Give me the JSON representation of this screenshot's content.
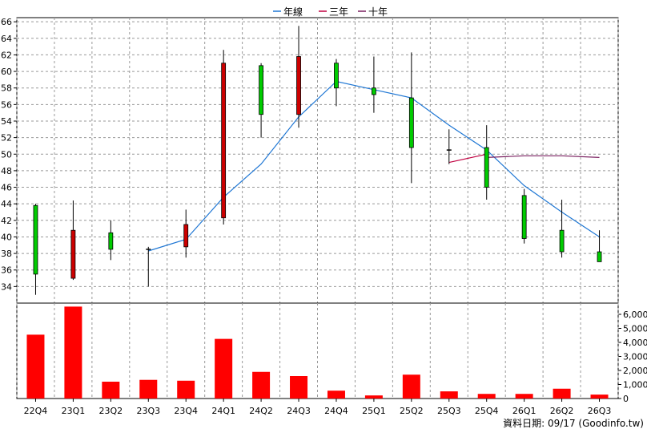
{
  "legend": [
    {
      "name": "年線",
      "color": "#1f77d4"
    },
    {
      "name": "三年",
      "color": "#c00040"
    },
    {
      "name": "十年",
      "color": "#7a2060"
    }
  ],
  "footer": "資料日期: 09/17 (Goodinfo.tw)",
  "chart_data": [
    {
      "type": "candlestick",
      "legend_placement": "top-center",
      "grid": true,
      "ylim": [
        32,
        66.5
      ],
      "yticks": [
        34,
        36,
        38,
        40,
        42,
        44,
        46,
        48,
        50,
        52,
        54,
        56,
        58,
        60,
        62,
        64,
        66
      ],
      "categories": [
        "22Q4",
        "23Q1",
        "23Q2",
        "23Q3",
        "23Q4",
        "24Q1",
        "24Q2",
        "24Q3",
        "24Q4",
        "25Q1",
        "25Q2",
        "25Q3",
        "25Q4",
        "26Q1",
        "26Q2",
        "26Q3"
      ],
      "candles": [
        {
          "open": 35.5,
          "close": 43.8,
          "high": 44.0,
          "low": 33.0,
          "color": "#00cc00"
        },
        {
          "open": 40.8,
          "close": 35.0,
          "high": 44.4,
          "low": 34.8,
          "color": "#cc0000"
        },
        {
          "open": 38.5,
          "close": 40.5,
          "high": 42.0,
          "low": 37.2,
          "color": "#00cc00"
        },
        {
          "open": 38.5,
          "close": 38.5,
          "high": 38.8,
          "low": 34.0,
          "color": "#000000"
        },
        {
          "open": 41.5,
          "close": 38.8,
          "high": 43.3,
          "low": 37.5,
          "color": "#cc0000"
        },
        {
          "open": 61.0,
          "close": 42.3,
          "high": 62.6,
          "low": 41.5,
          "color": "#cc0000"
        },
        {
          "open": 54.8,
          "close": 60.7,
          "high": 61.0,
          "low": 52.0,
          "color": "#00cc00"
        },
        {
          "open": 61.8,
          "close": 54.8,
          "high": 65.5,
          "low": 53.2,
          "color": "#cc0000"
        },
        {
          "open": 58.0,
          "close": 61.0,
          "high": 61.5,
          "low": 55.8,
          "color": "#00cc00"
        },
        {
          "open": 57.2,
          "close": 58.0,
          "high": 61.8,
          "low": 55.0,
          "color": "#00cc00"
        },
        {
          "open": 50.8,
          "close": 56.8,
          "high": 62.3,
          "low": 46.5,
          "color": "#00cc00"
        },
        {
          "open": 50.5,
          "close": 50.5,
          "high": 53.0,
          "low": 48.8,
          "color": "#000000"
        },
        {
          "open": 46.0,
          "close": 50.8,
          "high": 53.5,
          "low": 44.5,
          "color": "#00cc00"
        },
        {
          "open": 39.8,
          "close": 45.0,
          "high": 45.8,
          "low": 39.2,
          "color": "#00cc00"
        },
        {
          "open": 38.2,
          "close": 40.8,
          "high": 44.5,
          "low": 37.5,
          "color": "#00cc00"
        },
        {
          "open": 37.0,
          "close": 38.2,
          "high": 40.8,
          "low": 37.0,
          "color": "#00cc00"
        }
      ],
      "series": [
        {
          "name": "年線",
          "color": "#1f77d4",
          "values": [
            null,
            null,
            null,
            38.3,
            39.7,
            44.8,
            48.8,
            54.5,
            58.8,
            57.8,
            56.8,
            53.5,
            50.5,
            46.2,
            43.0,
            40.0
          ]
        },
        {
          "name": "三年",
          "color": "#c00040",
          "values": [
            null,
            null,
            null,
            null,
            null,
            null,
            null,
            null,
            null,
            null,
            null,
            49.0,
            50.0,
            null,
            null,
            null
          ]
        },
        {
          "name": "十年",
          "color": "#7a2060",
          "values": [
            null,
            null,
            null,
            null,
            null,
            null,
            null,
            null,
            null,
            null,
            null,
            null,
            49.6,
            49.8,
            49.8,
            49.6
          ]
        }
      ]
    },
    {
      "type": "bar",
      "categories": [
        "22Q4",
        "23Q1",
        "23Q2",
        "23Q3",
        "23Q4",
        "24Q1",
        "24Q2",
        "24Q3",
        "24Q4",
        "25Q1",
        "25Q2",
        "25Q3",
        "25Q4",
        "26Q1",
        "26Q2",
        "26Q3"
      ],
      "values": [
        4550,
        6550,
        1200,
        1330,
        1270,
        4250,
        1900,
        1600,
        560,
        220,
        1700,
        510,
        330,
        330,
        700,
        280
      ],
      "color": "#ff0000",
      "ylim": [
        0,
        6800
      ],
      "ytick_labels": [
        "0",
        "1,000",
        "2,000",
        "3,000",
        "4,000",
        "5,000",
        "6,000"
      ],
      "yticks": [
        0,
        1000,
        2000,
        3000,
        4000,
        5000,
        6000
      ]
    }
  ]
}
